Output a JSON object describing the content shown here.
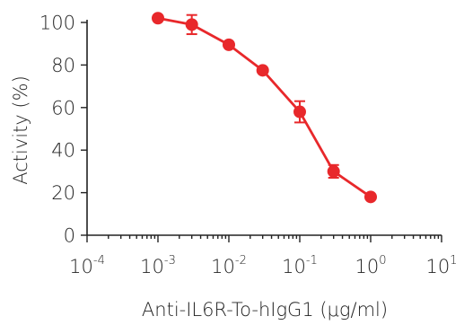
{
  "chart_data": {
    "type": "scatter",
    "x_scale": "log",
    "xlabel": "Anti-IL6R-To-hIgG1 (μg/ml)",
    "ylabel": "Activity (%)",
    "xlim": [
      0.0001,
      10
    ],
    "ylim": [
      0,
      105
    ],
    "x_ticks": [
      {
        "base": "10",
        "exp": "-4",
        "value": 0.0001
      },
      {
        "base": "10",
        "exp": "-3",
        "value": 0.001
      },
      {
        "base": "10",
        "exp": "-2",
        "value": 0.01
      },
      {
        "base": "10",
        "exp": "-1",
        "value": 0.1
      },
      {
        "base": "10",
        "exp": "0",
        "value": 1
      },
      {
        "base": "10",
        "exp": "1",
        "value": 10
      }
    ],
    "y_ticks": [
      0,
      20,
      40,
      60,
      80,
      100
    ],
    "grid": false,
    "color": "#e8282b",
    "series": [
      {
        "x": [
          0.001,
          0.003,
          0.01,
          0.03,
          0.1,
          0.3,
          1
        ],
        "y": [
          102,
          99,
          89.5,
          77.5,
          58,
          30,
          18
        ],
        "error": [
          0,
          4.5,
          0,
          0,
          5,
          3,
          0
        ]
      }
    ]
  }
}
